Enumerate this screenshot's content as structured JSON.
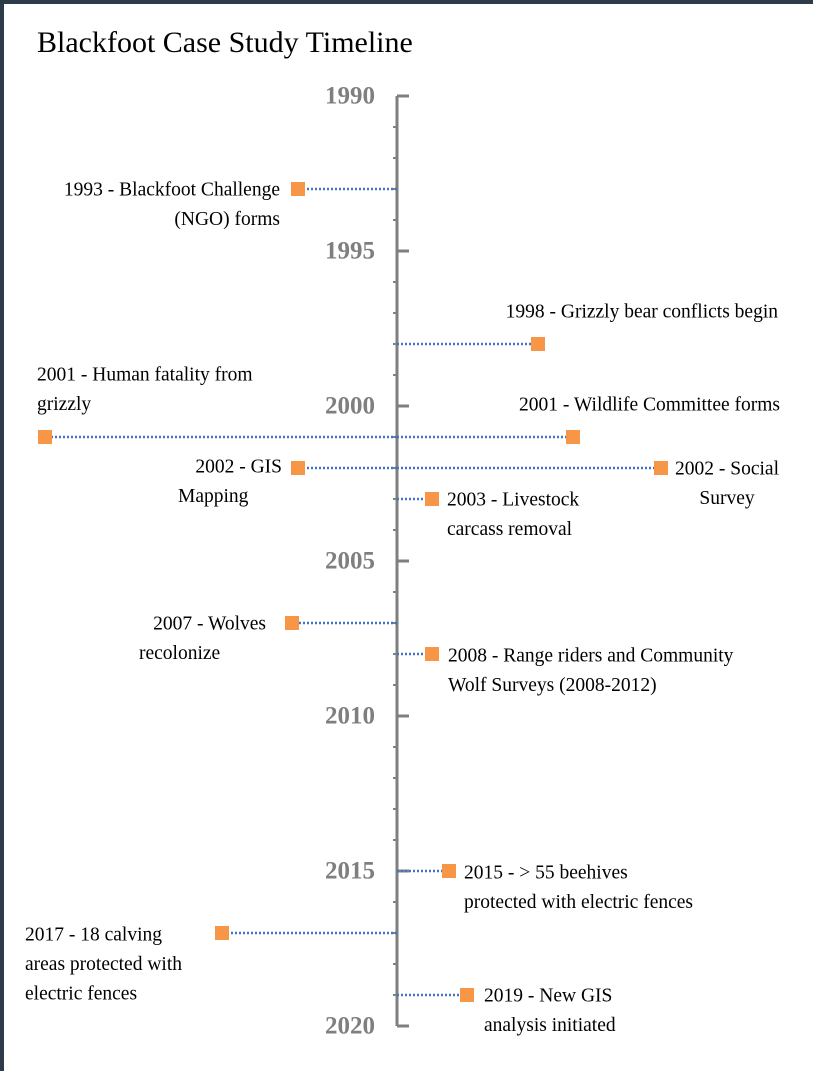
{
  "chart_data": {
    "type": "timeline",
    "title": "Blackfoot Case Study Timeline",
    "ylim": [
      1990,
      2020
    ],
    "yticks": [
      1990,
      1995,
      2000,
      2005,
      2010,
      2015,
      2020
    ],
    "yticks_minor": [
      1991,
      1992,
      1993,
      1994,
      1996,
      1997,
      1998,
      1999,
      2001,
      2002,
      2003,
      2004,
      2006,
      2007,
      2008,
      2009,
      2011,
      2012,
      2013,
      2014,
      2016,
      2017,
      2018,
      2019
    ],
    "marker_color": "#f79646",
    "connector_color": "#4472c4",
    "axis_color": "#7f7f7f",
    "events": [
      {
        "year": 1993,
        "label": [
          "1993 - Blackfoot Challenge",
          "(NGO) forms"
        ]
      },
      {
        "year": 1998,
        "label": [
          "1998 - Grizzly bear conflicts begin"
        ]
      },
      {
        "year": 2001,
        "label": [
          "2001 - Human fatality from",
          "grizzly"
        ]
      },
      {
        "year": 2001,
        "label": [
          "2001 - Wildlife Committee forms"
        ]
      },
      {
        "year": 2002,
        "label": [
          "2002 - GIS",
          "Mapping"
        ]
      },
      {
        "year": 2002,
        "label": [
          "2002 - Social",
          "Survey"
        ]
      },
      {
        "year": 2003,
        "label": [
          "2003 - Livestock",
          "carcass removal"
        ]
      },
      {
        "year": 2007,
        "label": [
          "2007 - Wolves",
          "recolonize"
        ]
      },
      {
        "year": 2008,
        "label": [
          "2008 - Range riders and Community",
          "Wolf Surveys (2008-2012)"
        ]
      },
      {
        "year": 2015,
        "label": [
          "2015 - > 55 beehives",
          "protected with electric fences"
        ]
      },
      {
        "year": 2017,
        "label": [
          "2017 - 18 calving",
          "areas protected with",
          "electric fences"
        ]
      },
      {
        "year": 2019,
        "label": [
          "2019 - New GIS",
          "analysis initiated"
        ]
      }
    ]
  }
}
